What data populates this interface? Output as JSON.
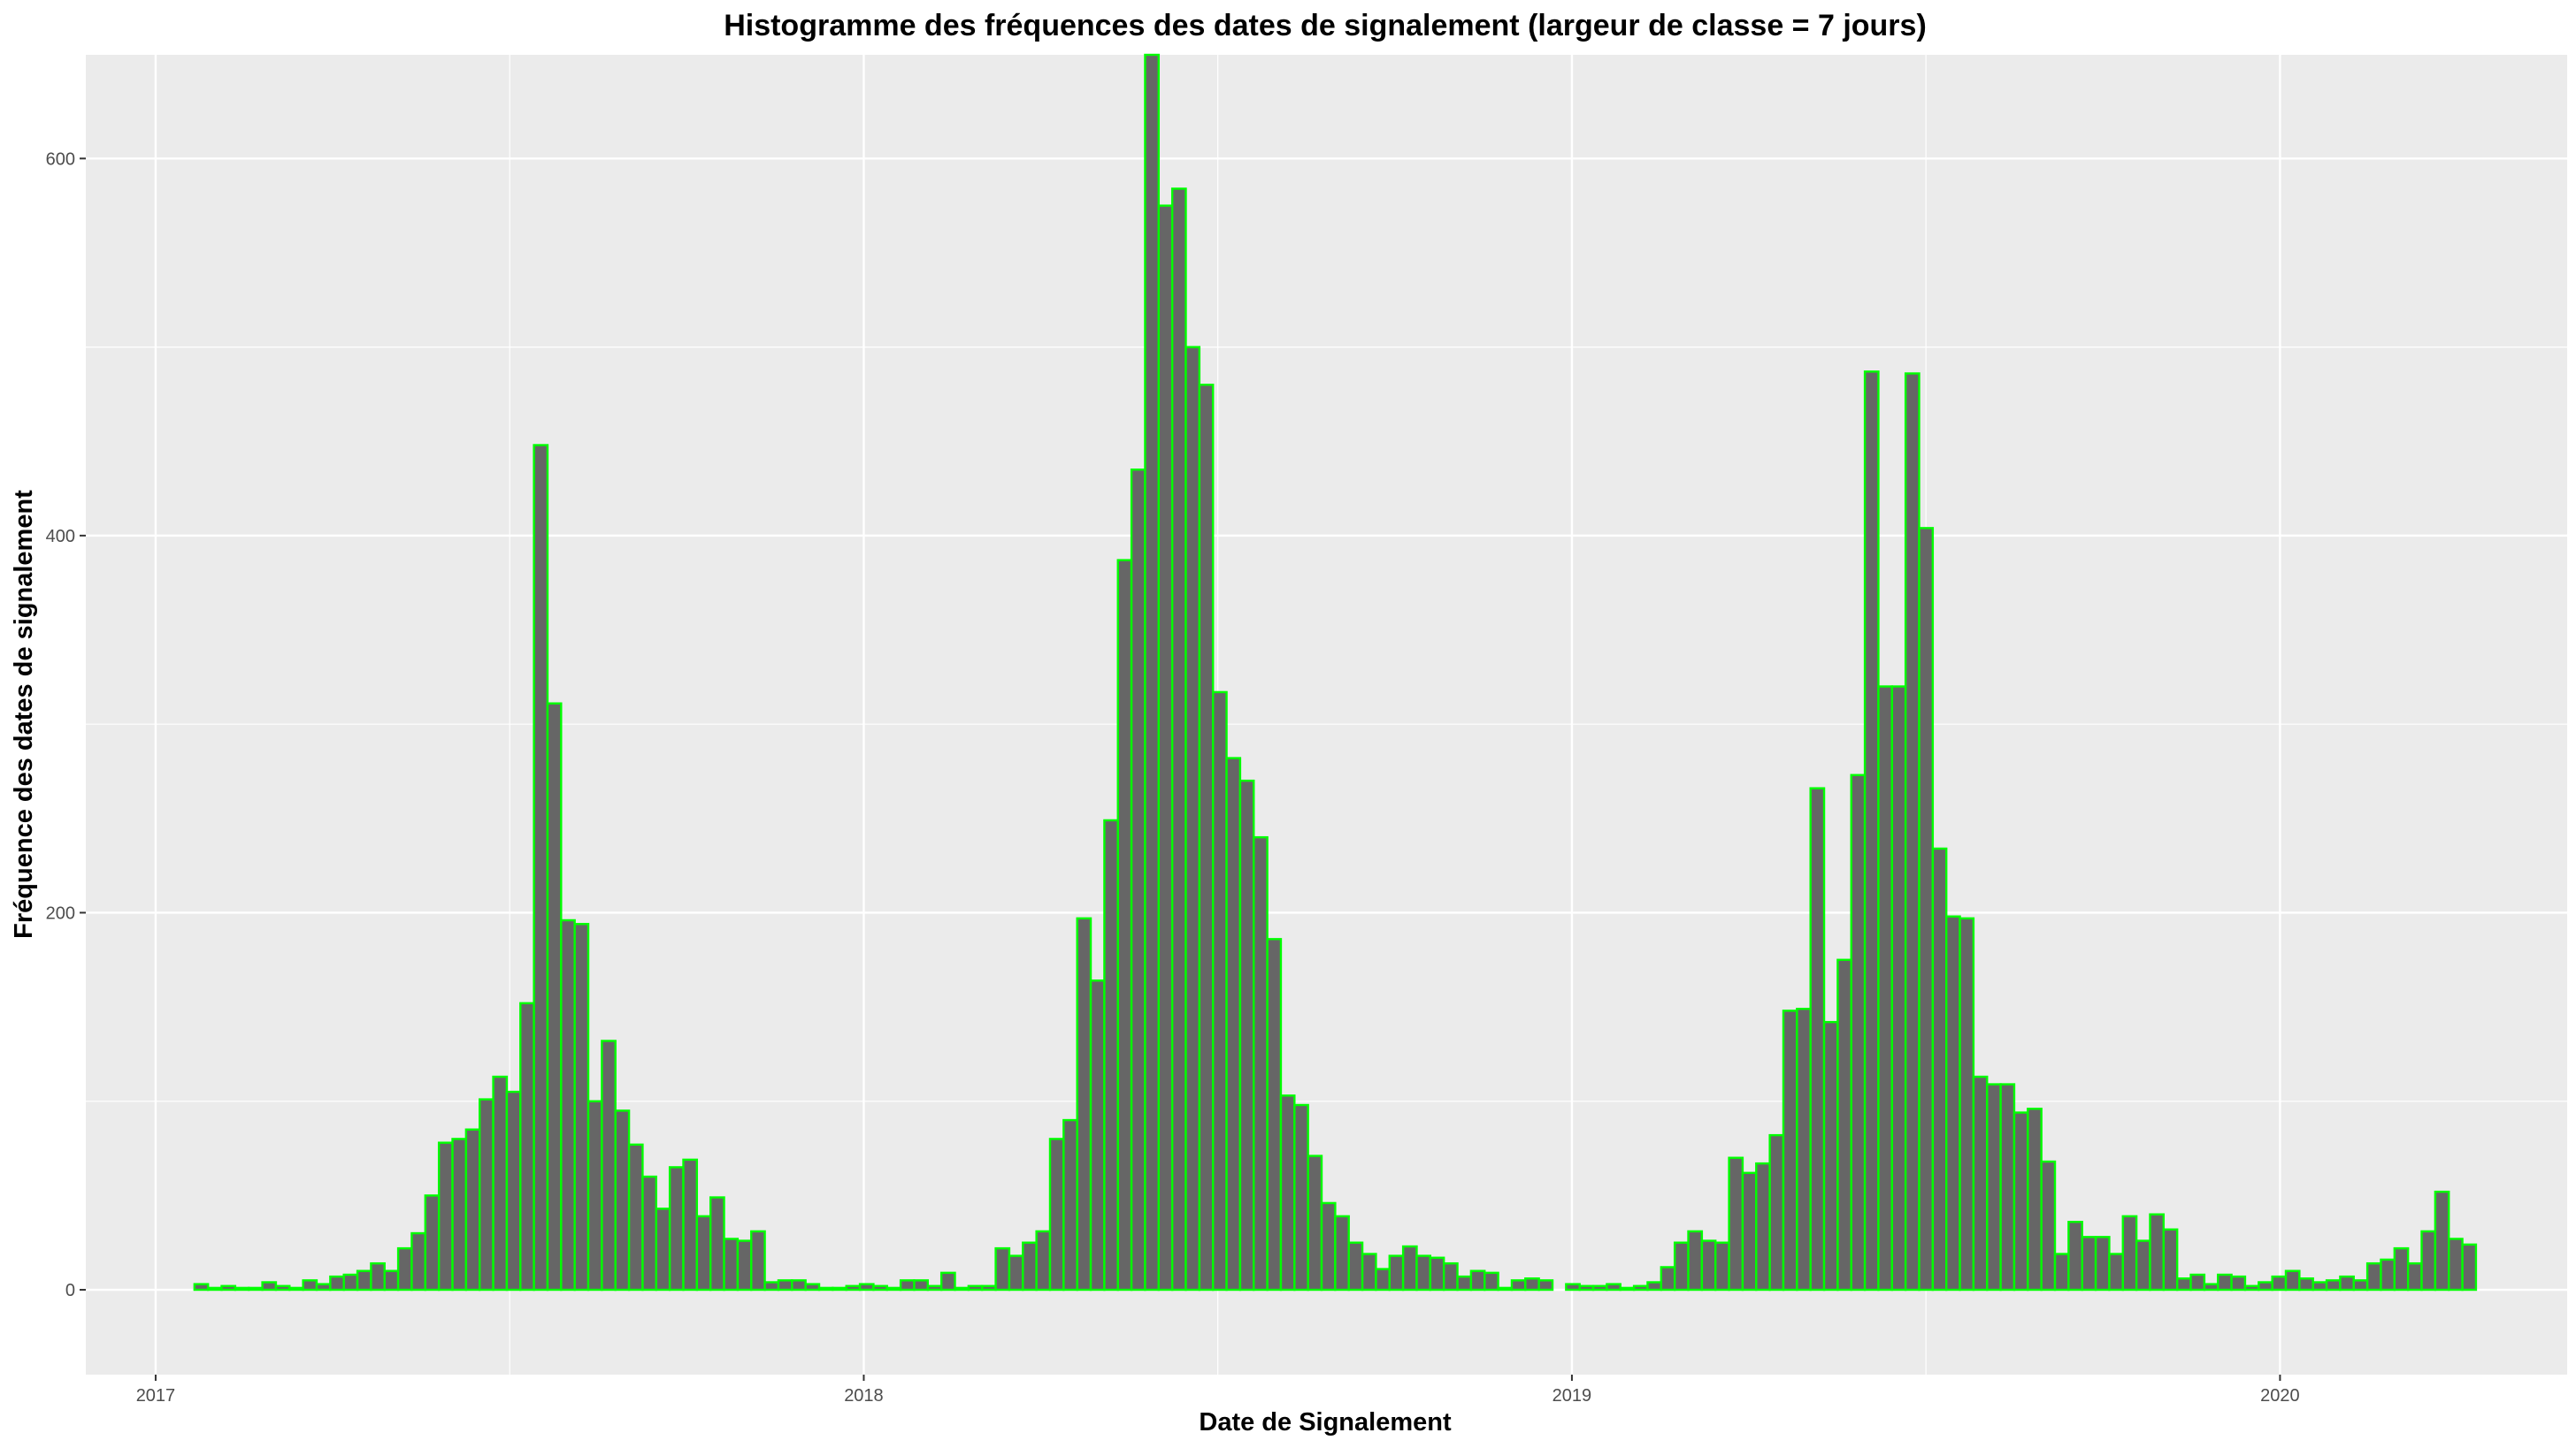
{
  "chart_data": {
    "type": "bar",
    "title": "Histogramme des fréquences des dates de signalement (largeur de classe = 7 jours)",
    "xlabel": "Date de Signalement",
    "ylabel": "Fréquence des dates de signalement",
    "x_ticks": [
      "2017",
      "2018",
      "2019",
      "2020"
    ],
    "y_ticks": [
      0,
      200,
      400,
      600
    ],
    "ylim": [
      -45,
      655
    ],
    "xlim": [
      "2016-11-26",
      "2020-05-28"
    ],
    "bin_width_days": 7,
    "bins_start": [
      "2017-01-21",
      "2020-04-11"
    ],
    "values": [
      3,
      1,
      2,
      1,
      1,
      4,
      2,
      1,
      5,
      3,
      7,
      8,
      10,
      14,
      10,
      22,
      30,
      50,
      78,
      80,
      85,
      101,
      113,
      105,
      152,
      448,
      311,
      196,
      194,
      100,
      132,
      95,
      77,
      60,
      43,
      65,
      69,
      39,
      49,
      27,
      26,
      31,
      4,
      5,
      5,
      3,
      1,
      1,
      2,
      3,
      2,
      1,
      5,
      5,
      2,
      9,
      1,
      2,
      2,
      22,
      18,
      25,
      31,
      80,
      90,
      197,
      164,
      249,
      387,
      435,
      655,
      575,
      584,
      500,
      480,
      317,
      282,
      270,
      240,
      186,
      103,
      98,
      71,
      46,
      39,
      25,
      19,
      11,
      18,
      23,
      18,
      17,
      14,
      7,
      10,
      9,
      1,
      5,
      6,
      5,
      0,
      3,
      2,
      2,
      3,
      1,
      2,
      4,
      12,
      25,
      31,
      26,
      25,
      70,
      62,
      67,
      82,
      148,
      149,
      266,
      142,
      175,
      273,
      487,
      320,
      320,
      486,
      404,
      234,
      198,
      197,
      113,
      109,
      109,
      94,
      96,
      68,
      19,
      36,
      28,
      28,
      19,
      39,
      26,
      40,
      32,
      6,
      8,
      3,
      8,
      7,
      2,
      4,
      7,
      10,
      6,
      4,
      5,
      7,
      5,
      14,
      16,
      22,
      14,
      31,
      52,
      27,
      24
    ]
  },
  "colors": {
    "panel": "#ebebeb",
    "grid_major": "#ffffff",
    "bar_fill": "#666666",
    "bar_outline": "#00ff00"
  }
}
